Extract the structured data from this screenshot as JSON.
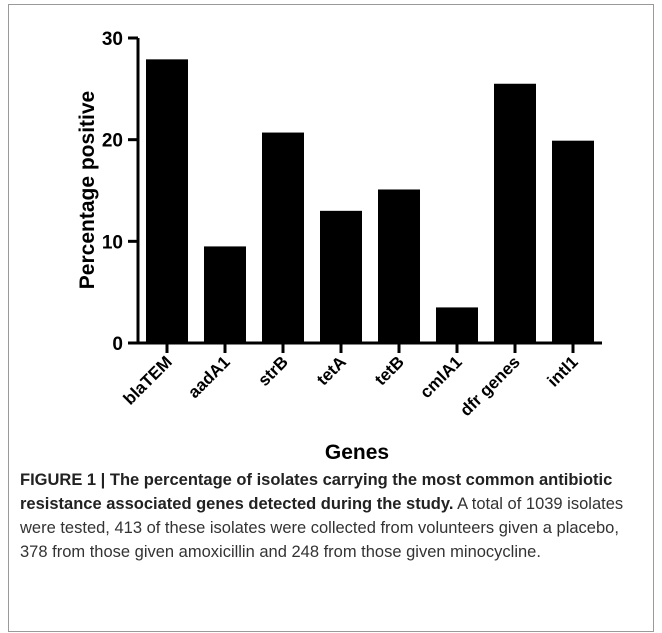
{
  "chart_data": {
    "type": "bar",
    "categories": [
      "blaTEM",
      "aadA1",
      "strB",
      "tetA",
      "tetB",
      "cmlA1",
      "dfr genes",
      "intl1"
    ],
    "values": [
      27.9,
      9.5,
      20.7,
      13.0,
      15.1,
      3.5,
      25.5,
      19.9
    ],
    "title": "",
    "xlabel": "Genes",
    "ylabel": "Percentage positive",
    "ylim": [
      0,
      30
    ],
    "yticks": [
      0,
      10,
      20,
      30
    ],
    "grid": false,
    "bar_color": "#000000"
  },
  "caption": {
    "title": "FIGURE 1 | The percentage of isolates carrying the most common antibiotic resistance associated genes detected during the study.",
    "body": " A total of 1039 isolates were tested, 413 of these isolates were collected from volunteers given a placebo, 378 from those given amoxicillin and 248 from those given minocycline."
  }
}
